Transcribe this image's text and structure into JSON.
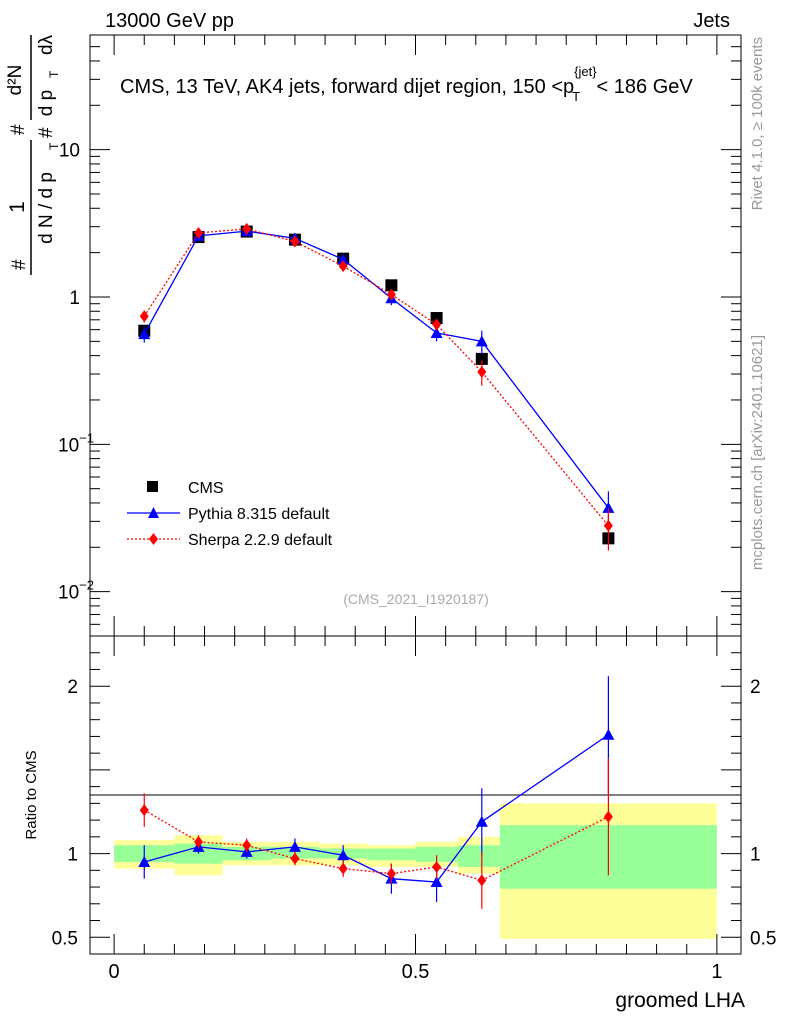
{
  "header": {
    "left": "13000 GeV pp",
    "right": "Jets"
  },
  "side_labels": {
    "rivet": "Rivet 4.1.0, ≥ 100k events",
    "mcplots": "mcplots.cern.ch [arXiv:2401.10621]"
  },
  "colors": {
    "cms": "#000000",
    "pythia": "#0000ff",
    "sherpa": "#ff0000",
    "band_inner": "#99ff99",
    "band_outer": "#ffff99"
  },
  "chart_data": [
    {
      "type": "scatter",
      "panel": "main",
      "title": "CMS, 13 TeV, AK4 jets, forward dijet region, 150 <p_T^{jet}< 186 GeV",
      "title_parts": {
        "pre": "CMS, 13 TeV, AK4 jets, forward dijet region, 150 <p",
        "sub": "T",
        "sup": "{jet}",
        "post": "< 186 GeV"
      },
      "ylabel": "1/dN/dp_T dN^2/dp_T dλ",
      "ylabel_parts": {
        "hash": "#",
        "one": "1",
        "dn": "d N / d p",
        "T": "T",
        "d2n": "d²N",
        "dpt": "d p",
        "dl": "dλ"
      },
      "yscale": "log",
      "ylim": [
        0.005,
        60
      ],
      "xlim": [
        -0.04,
        1.04
      ],
      "y_ticks": [
        {
          "value": 0.01,
          "label": "10",
          "exp": "−2"
        },
        {
          "value": 0.1,
          "label": "10",
          "exp": "−1"
        },
        {
          "value": 1,
          "label": "1",
          "exp": ""
        },
        {
          "value": 10,
          "label": "10",
          "exp": ""
        }
      ],
      "watermark": "(CMS_2021_I1920187)",
      "legend": {
        "position": "bottom-left",
        "entries": [
          "CMS",
          "Pythia 8.315 default",
          "Sherpa 2.2.9 default"
        ]
      },
      "series": [
        {
          "name": "CMS",
          "marker": "square",
          "x": [
            0.05,
            0.14,
            0.22,
            0.3,
            0.38,
            0.46,
            0.535,
            0.61,
            0.82
          ],
          "y": [
            0.59,
            2.55,
            2.78,
            2.45,
            1.82,
            1.2,
            0.72,
            0.38,
            0.023
          ]
        },
        {
          "name": "Pythia 8.315 default",
          "marker": "triangle",
          "x": [
            0.05,
            0.14,
            0.22,
            0.3,
            0.38,
            0.46,
            0.535,
            0.61,
            0.82
          ],
          "y": [
            0.56,
            2.6,
            2.8,
            2.5,
            1.8,
            0.98,
            0.57,
            0.5,
            0.037
          ],
          "yerr": [
            0.07,
            0.1,
            0.1,
            0.1,
            0.1,
            0.1,
            0.07,
            0.09,
            0.011
          ]
        },
        {
          "name": "Sherpa 2.2.9 default",
          "marker": "diamond",
          "x": [
            0.05,
            0.14,
            0.22,
            0.3,
            0.38,
            0.46,
            0.535,
            0.61,
            0.82
          ],
          "y": [
            0.74,
            2.72,
            2.9,
            2.38,
            1.62,
            1.04,
            0.65,
            0.31,
            0.028
          ],
          "yerr": [
            0.07,
            0.1,
            0.1,
            0.1,
            0.1,
            0.08,
            0.06,
            0.06,
            0.009
          ]
        }
      ]
    },
    {
      "type": "scatter",
      "panel": "ratio",
      "xlabel": "groomed LHA",
      "ylabel": "Ratio to CMS",
      "ylim": [
        0.4,
        2.3
      ],
      "xlim": [
        -0.04,
        1.04
      ],
      "x_ticks": [
        {
          "value": 0,
          "label": "0"
        },
        {
          "value": 0.5,
          "label": "0.5"
        },
        {
          "value": 1,
          "label": "1"
        }
      ],
      "y_ticks": [
        {
          "value": 0.5,
          "label": "0.5"
        },
        {
          "value": 1,
          "label": "1"
        },
        {
          "value": 2,
          "label": "2"
        }
      ],
      "bins": [
        {
          "lo": 0.0,
          "hi": 0.1,
          "inner": [
            0.95,
            1.05
          ],
          "outer": [
            0.91,
            1.08
          ]
        },
        {
          "lo": 0.1,
          "hi": 0.18,
          "inner": [
            0.94,
            1.06
          ],
          "outer": [
            0.87,
            1.11
          ]
        },
        {
          "lo": 0.18,
          "hi": 0.26,
          "inner": [
            0.96,
            1.04
          ],
          "outer": [
            0.93,
            1.07
          ]
        },
        {
          "lo": 0.26,
          "hi": 0.34,
          "inner": [
            0.97,
            1.04
          ],
          "outer": [
            0.93,
            1.07
          ]
        },
        {
          "lo": 0.34,
          "hi": 0.42,
          "inner": [
            0.97,
            1.03
          ],
          "outer": [
            0.93,
            1.06
          ]
        },
        {
          "lo": 0.42,
          "hi": 0.5,
          "inner": [
            0.96,
            1.03
          ],
          "outer": [
            0.92,
            1.05
          ]
        },
        {
          "lo": 0.5,
          "hi": 0.57,
          "inner": [
            0.95,
            1.04
          ],
          "outer": [
            0.92,
            1.07
          ]
        },
        {
          "lo": 0.57,
          "hi": 0.64,
          "inner": [
            0.92,
            1.05
          ],
          "outer": [
            0.88,
            1.1
          ]
        },
        {
          "lo": 0.64,
          "hi": 1.0,
          "inner": [
            0.79,
            1.17
          ],
          "outer": [
            0.49,
            1.3
          ]
        }
      ],
      "series": [
        {
          "name": "Pythia 8.315 default",
          "marker": "triangle",
          "x": [
            0.05,
            0.14,
            0.22,
            0.3,
            0.38,
            0.46,
            0.535,
            0.61,
            0.82
          ],
          "y": [
            0.95,
            1.04,
            1.01,
            1.04,
            0.99,
            0.85,
            0.83,
            1.19,
            1.71
          ],
          "yerr": [
            0.1,
            0.04,
            0.04,
            0.05,
            0.06,
            0.09,
            0.12,
            0.2,
            0.35
          ]
        },
        {
          "name": "Sherpa 2.2.9 default",
          "marker": "diamond",
          "x": [
            0.05,
            0.14,
            0.22,
            0.3,
            0.38,
            0.46,
            0.535,
            0.61,
            0.82
          ],
          "y": [
            1.26,
            1.07,
            1.05,
            0.97,
            0.91,
            0.88,
            0.92,
            0.84,
            1.22
          ],
          "yerr": [
            0.1,
            0.04,
            0.04,
            0.04,
            0.05,
            0.06,
            0.07,
            0.17,
            0.35
          ]
        }
      ]
    }
  ]
}
